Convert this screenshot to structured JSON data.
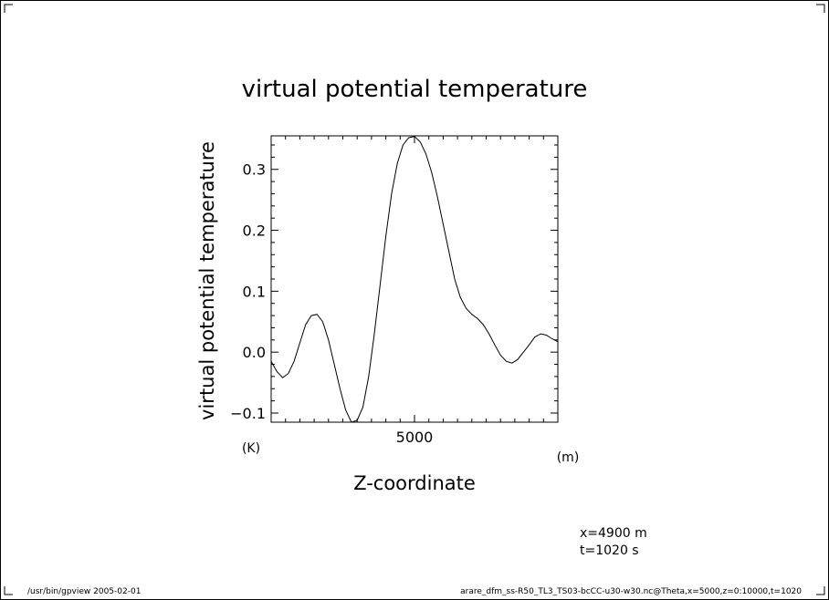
{
  "footer": {
    "left": "/usr/bin/gpview  2005-02-01",
    "right": "arare_dfm_ss-R50_TL3_TS03-bcCC-u30-w30.nc@Theta,x=5000,z=0:10000,t=1020"
  },
  "annotations": {
    "line1": "x=4900  m",
    "line2": "t=1020  s"
  },
  "chart_data": {
    "type": "line",
    "title": "virtual potential temperature",
    "xlabel": "Z-coordinate",
    "ylabel": "virtual potential temperature",
    "x_unit": "(m)",
    "y_unit": "(K)",
    "xlim": [
      0,
      10000
    ],
    "ylim": [
      -0.115,
      0.355
    ],
    "x_ticks": [
      5000
    ],
    "y_ticks": [
      -0.1,
      0.0,
      0.1,
      0.2,
      0.3
    ],
    "y_tick_labels": [
      "−0.1",
      "0.0",
      "0.1",
      "0.2",
      "0.3"
    ],
    "grid": false,
    "series": [
      {
        "x": [
          0,
          200,
          400,
          600,
          800,
          1000,
          1200,
          1400,
          1600,
          1800,
          2000,
          2200,
          2400,
          2600,
          2800,
          3000,
          3200,
          3400,
          3600,
          3800,
          4000,
          4200,
          4400,
          4600,
          4800,
          5000,
          5200,
          5400,
          5600,
          5800,
          6000,
          6200,
          6400,
          6600,
          6800,
          7000,
          7200,
          7400,
          7600,
          7800,
          8000,
          8200,
          8400,
          8600,
          8800,
          9000,
          9200,
          9400,
          9600,
          9800,
          10000
        ],
        "y": [
          -0.015,
          -0.032,
          -0.042,
          -0.035,
          -0.015,
          0.015,
          0.045,
          0.06,
          0.062,
          0.05,
          0.02,
          -0.02,
          -0.06,
          -0.095,
          -0.115,
          -0.112,
          -0.09,
          -0.04,
          0.03,
          0.11,
          0.19,
          0.26,
          0.31,
          0.34,
          0.352,
          0.354,
          0.345,
          0.325,
          0.295,
          0.255,
          0.21,
          0.165,
          0.12,
          0.09,
          0.072,
          0.062,
          0.055,
          0.045,
          0.03,
          0.012,
          -0.005,
          -0.015,
          -0.018,
          -0.012,
          0.0,
          0.012,
          0.025,
          0.03,
          0.028,
          0.022,
          0.017
        ]
      }
    ]
  }
}
